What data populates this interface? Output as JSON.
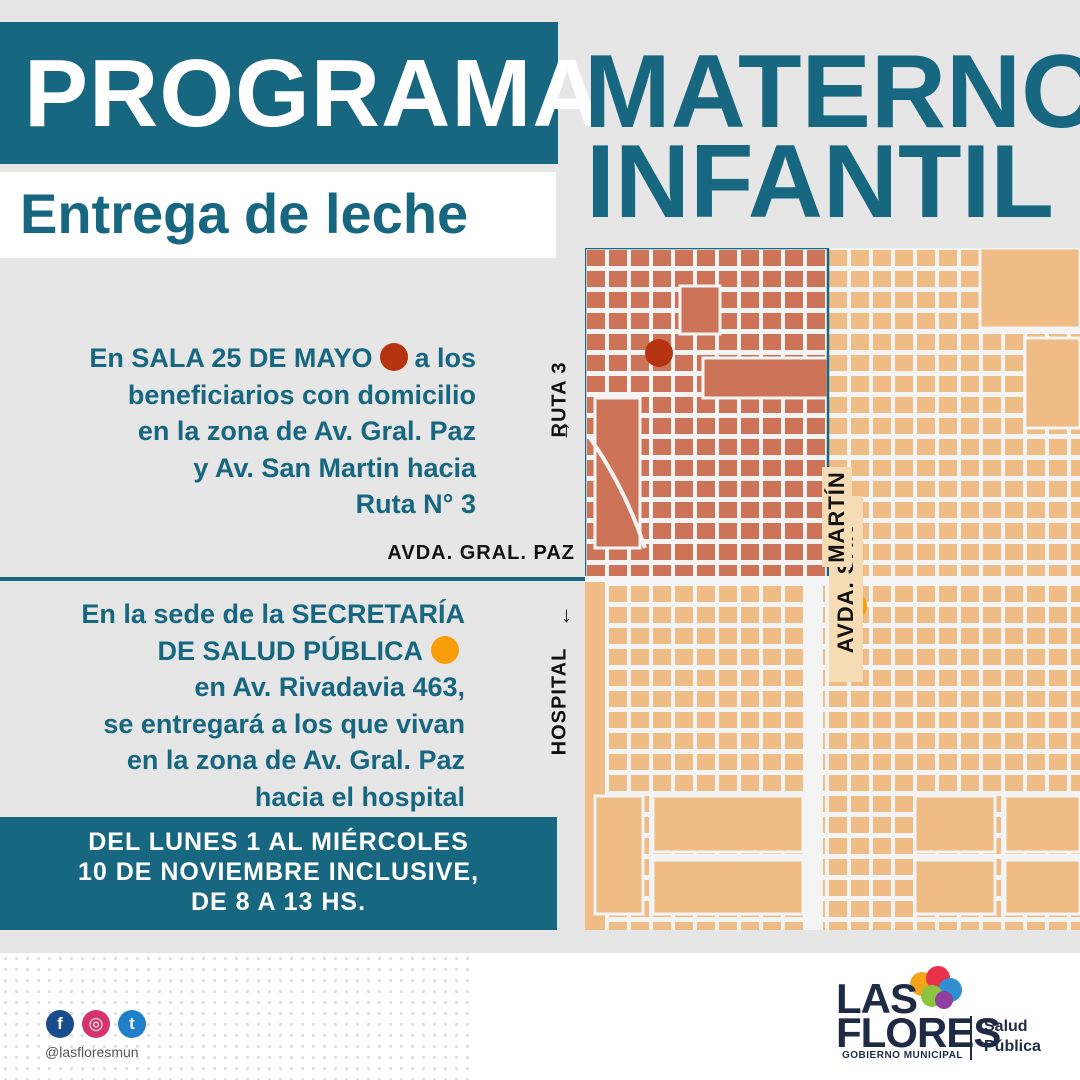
{
  "header": {
    "programa": "PROGRAMA",
    "subtitle": "Entrega de leche",
    "title_line1": "MATERNO",
    "title_line2": "INFANTIL"
  },
  "zones": {
    "sala": {
      "line1_pre": "En SALA 25 DE MAYO",
      "line1_post": "a los",
      "line2": "beneficiarios con domicilio",
      "line3": "en la zona de Av. Gral. Paz",
      "line4": "y Av. San Martin hacia",
      "line5": "Ruta N° 3",
      "marker_color": "#b5330e"
    },
    "secretaria": {
      "line1": "En la sede de la SECRETARÍA",
      "line2": "DE SALUD PÚBLICA",
      "line3": "en Av. Rivadavia 463,",
      "line4": "se entregará a los que vivan",
      "line5": "en la zona de Av. Gral. Paz",
      "line6": "hacia el hospital",
      "marker_color": "#f99d0b"
    }
  },
  "map_labels": {
    "ruta3": "RUTA 3",
    "hospital": "HOSPITAL",
    "gral_paz": "AVDA. GRAL. PAZ",
    "san_martin_a": "AVDA. SAN",
    "san_martin_b": "MARTÍN",
    "arrow_up": "→",
    "arrow_down": "←"
  },
  "dates": {
    "line1": "DEL LUNES 1 AL MIÉRCOLES",
    "line2": "10 DE NOVIEMBRE INCLUSIVE,",
    "line3": "DE 8 A 13 HS."
  },
  "footer": {
    "social": {
      "facebook": "f",
      "instagram": "◎",
      "twitter": "t"
    },
    "handle": "@lasfloresmun",
    "logo_las": "LAS",
    "logo_flores": "FLORES",
    "logo_gobierno": "GOBIERNO MUNICIPAL",
    "logo_salud": "Salud",
    "logo_publica": "Pública"
  },
  "colors": {
    "brand_blue": "#176781",
    "zone_north": "#cd7458",
    "zone_south": "#eebc84",
    "streets": "#f4f4f4"
  }
}
